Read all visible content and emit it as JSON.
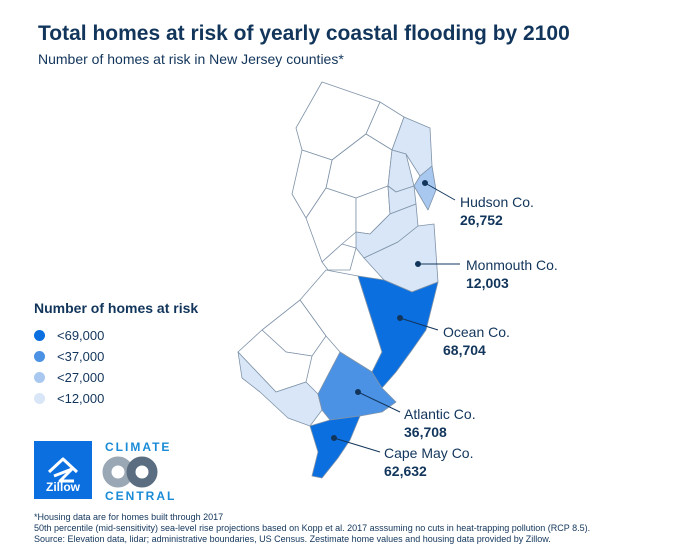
{
  "title": "Total homes at risk of yearly coastal flooding by 2100",
  "subtitle": "Number of homes at risk in New Jersey counties*",
  "legend": {
    "title": "Number of homes at risk",
    "items": [
      {
        "label": "<69,000",
        "color": "#0b6fe0"
      },
      {
        "label": "<37,000",
        "color": "#4b92e4"
      },
      {
        "label": "<27,000",
        "color": "#a8c8ef"
      },
      {
        "label": "<12,000",
        "color": "#d8e6f7"
      }
    ]
  },
  "callouts": [
    {
      "name": "Hudson Co.",
      "value": "26,752"
    },
    {
      "name": "Monmouth Co.",
      "value": "12,003"
    },
    {
      "name": "Ocean Co.",
      "value": "68,704"
    },
    {
      "name": "Atlantic Co.",
      "value": "36,708"
    },
    {
      "name": "Cape May Co.",
      "value": "62,632"
    }
  ],
  "logos": {
    "zillow": "Zillow",
    "climate_central_line1": "CLIMATE",
    "climate_central_line2": "CENTRAL"
  },
  "footnotes": [
    "*Housing data are for homes built through 2017",
    "50th percentile (mid-sensitivity) sea-level rise projections based on Kopp et al. 2017 asssuming no cuts in heat-trapping pollution (RCP 8.5).",
    "Source: Elevation data, lidar; administrative boundaries, US Census. Zestimate home values and housing data provided by Zillow."
  ],
  "colors": {
    "text": "#12355b",
    "county_border": "#7f93a8",
    "no_risk_fill": "#ffffff",
    "leader_line": "#12355b"
  }
}
